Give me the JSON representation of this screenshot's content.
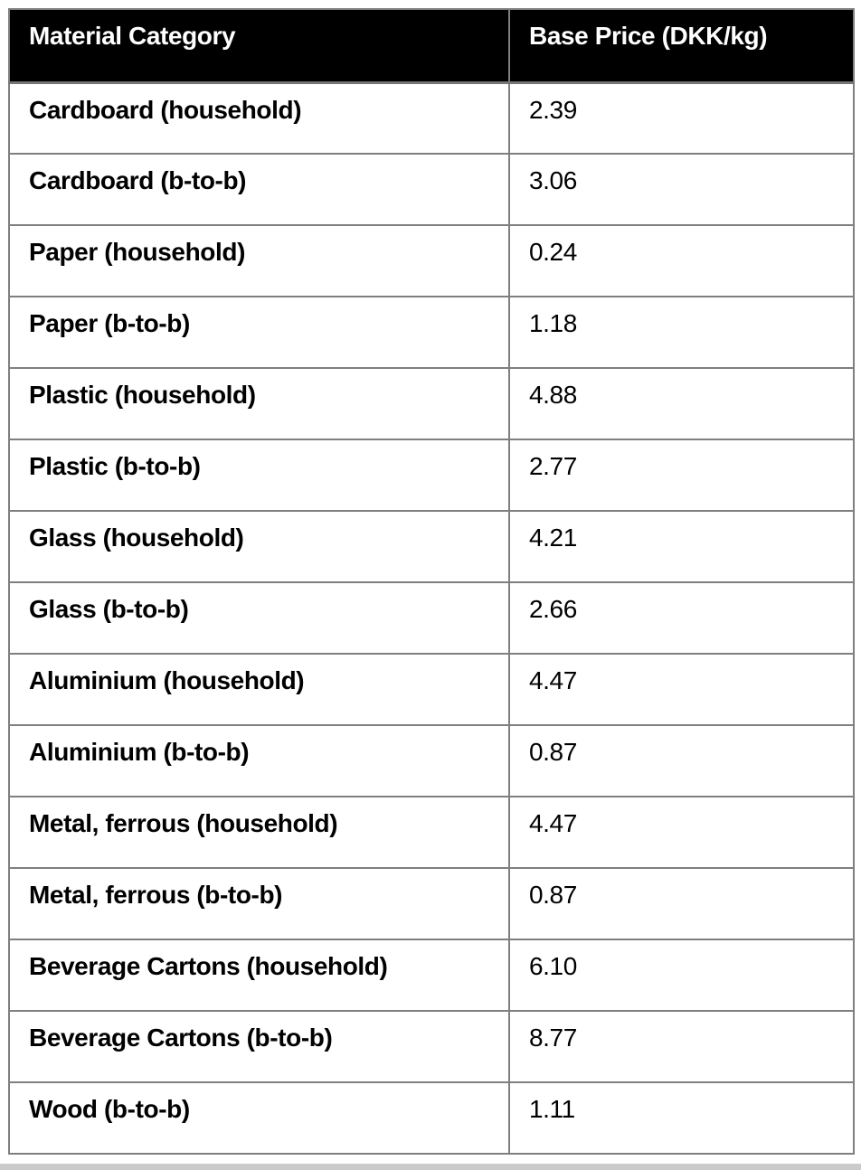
{
  "table": {
    "headers": [
      "Material Category",
      "Base Price (DKK/kg)"
    ],
    "rows": [
      {
        "category": "Cardboard (household)",
        "price": "2.39"
      },
      {
        "category": "Cardboard (b-to-b)",
        "price": "3.06"
      },
      {
        "category": "Paper (household)",
        "price": "0.24"
      },
      {
        "category": "Paper (b-to-b)",
        "price": "1.18"
      },
      {
        "category": "Plastic (household)",
        "price": "4.88"
      },
      {
        "category": "Plastic (b-to-b)",
        "price": "2.77"
      },
      {
        "category": "Glass (household)",
        "price": "4.21"
      },
      {
        "category": "Glass (b-to-b)",
        "price": "2.66"
      },
      {
        "category": "Aluminium (household)",
        "price": "4.47"
      },
      {
        "category": "Aluminium (b-to-b)",
        "price": "0.87"
      },
      {
        "category": "Metal, ferrous (household)",
        "price": "4.47"
      },
      {
        "category": "Metal, ferrous (b-to-b)",
        "price": "0.87"
      },
      {
        "category": "Beverage Cartons (household)",
        "price": "6.10"
      },
      {
        "category": "Beverage Cartons (b-to-b)",
        "price": "8.77"
      },
      {
        "category": "Wood (b-to-b)",
        "price": "1.11"
      }
    ]
  },
  "colors": {
    "header_bg": "#000000",
    "header_text": "#ffffff",
    "border": "#7f7f7f",
    "body_text": "#000000",
    "bottom_strip": "#cbcbcb"
  }
}
